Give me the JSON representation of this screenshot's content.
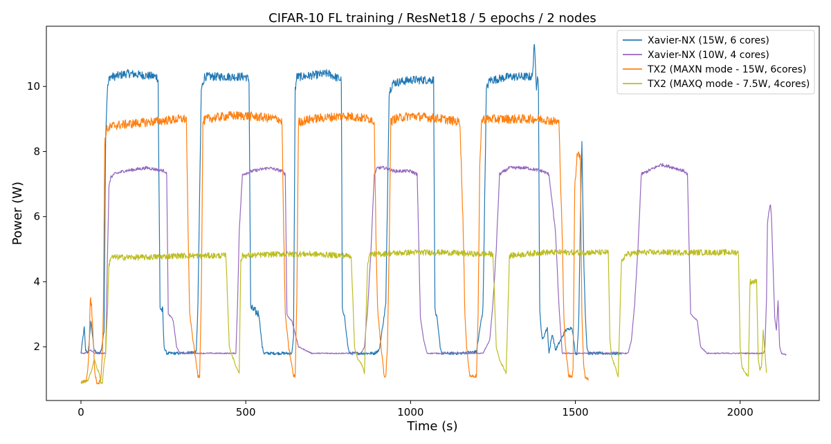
{
  "chart_data": {
    "type": "line",
    "title": "CIFAR-10 FL training / ResNet18 / 5 epochs / 2 nodes",
    "xlabel": "Time (s)",
    "ylabel": "Power (W)",
    "xlim": [
      -105,
      2240
    ],
    "ylim": [
      0.35,
      11.85
    ],
    "xticks": [
      0,
      500,
      1000,
      1500,
      2000
    ],
    "xtick_labels": [
      "0",
      "500",
      "1000",
      "1500",
      "2000"
    ],
    "yticks": [
      2,
      4,
      6,
      8,
      10
    ],
    "ytick_labels": [
      "2",
      "4",
      "6",
      "8",
      "10"
    ],
    "grid": false,
    "legend_position": "top-right",
    "series": [
      {
        "name": "Xavier-NX (15W, 6 cores)",
        "color": "#1f77b4",
        "noise": 0.13,
        "x": [
          0,
          10,
          14,
          22,
          30,
          40,
          48,
          55,
          62,
          70,
          75,
          80,
          85,
          88,
          100,
          140,
          230,
          234,
          240,
          248,
          252,
          260,
          300,
          350,
          355,
          365,
          375,
          380,
          500,
          510,
          515,
          540,
          550,
          555,
          640,
          645,
          650,
          655,
          670,
          750,
          790,
          793,
          800,
          810,
          815,
          860,
          890,
          905,
          925,
          935,
          945,
          1000,
          1070,
          1074,
          1080,
          1090,
          1095,
          1110,
          1150,
          1200,
          1220,
          1230,
          1240,
          1250,
          1300,
          1370,
          1375,
          1378,
          1382,
          1385,
          1388,
          1392,
          1395,
          1400,
          1415,
          1420,
          1430,
          1440,
          1470,
          1490,
          1500,
          1505,
          1510,
          1515,
          1520,
          1525,
          1530,
          1535,
          1540,
          1545,
          1550,
          1555,
          1560,
          1570,
          1580,
          1590,
          1600,
          1610,
          1620,
          1640
        ],
        "y": [
          1.8,
          2.6,
          1.9,
          1.8,
          2.8,
          1.9,
          1.8,
          1.8,
          1.9,
          2.5,
          8.5,
          9.9,
          10.2,
          10.3,
          10.3,
          10.4,
          10.3,
          10.2,
          3.2,
          3.1,
          2.0,
          1.8,
          1.8,
          1.85,
          3.3,
          9.9,
          10.3,
          10.3,
          10.3,
          10.2,
          3.2,
          3.0,
          2.0,
          1.8,
          1.8,
          2.3,
          9.9,
          10.3,
          10.3,
          10.4,
          10.2,
          3.1,
          2.9,
          2.0,
          1.8,
          1.8,
          1.8,
          1.9,
          3.3,
          9.8,
          10.1,
          10.2,
          10.2,
          3.1,
          2.9,
          2.0,
          1.8,
          1.8,
          1.8,
          1.85,
          3.2,
          9.9,
          10.2,
          10.2,
          10.3,
          10.3,
          11.35,
          10.8,
          10.0,
          10.4,
          10.0,
          3.1,
          2.7,
          2.2,
          2.6,
          1.8,
          2.4,
          1.9,
          2.5,
          2.6,
          1.8,
          1.8,
          2.7,
          5.8,
          8.3,
          5.0,
          3.1,
          2.0,
          1.8,
          1.8,
          1.8,
          1.8,
          1.8,
          1.8,
          1.8,
          1.8,
          1.8,
          1.8,
          1.8,
          1.8
        ]
      },
      {
        "name": "Xavier-NX (10W, 4 cores)",
        "color": "#9467bd",
        "noise": 0.05,
        "x": [
          0,
          10,
          20,
          30,
          40,
          60,
          75,
          78,
          80,
          85,
          90,
          100,
          130,
          200,
          255,
          260,
          265,
          275,
          280,
          290,
          300,
          350,
          400,
          460,
          470,
          475,
          480,
          490,
          520,
          570,
          610,
          620,
          625,
          630,
          640,
          660,
          700,
          710,
          715,
          740,
          790,
          850,
          860,
          870,
          880,
          890,
          900,
          920,
          950,
          1000,
          1020,
          1030,
          1040,
          1050,
          1060,
          1100,
          1150,
          1200,
          1220,
          1240,
          1250,
          1260,
          1270,
          1300,
          1350,
          1400,
          1420,
          1440,
          1450,
          1460,
          1500,
          1600,
          1650,
          1660,
          1670,
          1680,
          1690,
          1700,
          1760,
          1800,
          1830,
          1840,
          1850,
          1860,
          1870,
          1880,
          1900,
          1950,
          2000,
          2050,
          2070,
          2075,
          2080,
          2083,
          2088,
          2092,
          2095,
          2100,
          2105,
          2110,
          2115,
          2120,
          2125,
          2140
        ],
        "y": [
          1.8,
          1.8,
          1.85,
          1.9,
          1.8,
          1.8,
          1.8,
          3.3,
          4.6,
          6.9,
          7.2,
          7.3,
          7.4,
          7.5,
          7.4,
          7.3,
          3.0,
          2.9,
          2.8,
          2.0,
          1.8,
          1.8,
          1.8,
          1.8,
          1.8,
          3.3,
          5.5,
          7.3,
          7.4,
          7.5,
          7.4,
          7.3,
          3.0,
          2.9,
          2.8,
          2.0,
          1.8,
          1.8,
          1.8,
          1.8,
          1.8,
          1.8,
          2.0,
          3.2,
          5.0,
          7.3,
          7.5,
          7.5,
          7.4,
          7.4,
          7.3,
          2.9,
          2.2,
          1.8,
          1.8,
          1.8,
          1.8,
          1.8,
          1.8,
          2.2,
          3.3,
          5.0,
          7.3,
          7.5,
          7.5,
          7.4,
          7.3,
          5.5,
          3.3,
          1.8,
          1.8,
          1.8,
          1.8,
          1.8,
          2.2,
          3.3,
          5.0,
          7.3,
          7.6,
          7.5,
          7.4,
          7.3,
          3.0,
          2.9,
          2.8,
          2.0,
          1.8,
          1.8,
          1.8,
          1.8,
          1.8,
          1.9,
          3.5,
          5.8,
          6.2,
          6.35,
          6.0,
          4.5,
          2.9,
          2.5,
          3.4,
          2.0,
          1.8,
          1.75
        ]
      },
      {
        "name": "TX2 (MAXN mode - 15W, 6cores)",
        "color": "#ff7f0e",
        "noise": 0.14,
        "x": [
          0,
          15,
          20,
          25,
          28,
          32,
          36,
          42,
          48,
          55,
          60,
          65,
          68,
          72,
          76,
          80,
          100,
          200,
          300,
          320,
          325,
          330,
          340,
          355,
          360,
          365,
          370,
          380,
          450,
          500,
          600,
          610,
          615,
          620,
          630,
          645,
          650,
          655,
          660,
          700,
          800,
          880,
          890,
          895,
          900,
          910,
          920,
          925,
          930,
          935,
          940,
          950,
          1000,
          1100,
          1150,
          1160,
          1165,
          1170,
          1180,
          1200,
          1205,
          1210,
          1215,
          1220,
          1240,
          1300,
          1400,
          1450,
          1460,
          1465,
          1470,
          1480,
          1490,
          1493,
          1498,
          1505,
          1510,
          1515,
          1520,
          1525,
          1530,
          1540
        ],
        "y": [
          0.9,
          0.95,
          1.2,
          2.0,
          3.5,
          3.3,
          2.5,
          1.2,
          0.9,
          0.9,
          1.0,
          1.8,
          3.2,
          8.2,
          8.6,
          8.7,
          8.8,
          8.9,
          9.0,
          9.0,
          5.5,
          3.0,
          2.2,
          1.1,
          1.1,
          3.5,
          8.9,
          9.0,
          9.1,
          9.1,
          9.0,
          8.9,
          5.5,
          3.0,
          2.0,
          1.1,
          1.1,
          3.5,
          8.9,
          9.0,
          9.1,
          9.0,
          8.9,
          5.5,
          3.2,
          2.0,
          1.1,
          1.1,
          2.0,
          5.0,
          8.9,
          9.0,
          9.1,
          9.0,
          8.9,
          5.5,
          3.0,
          2.0,
          1.1,
          1.1,
          3.0,
          7.5,
          8.9,
          9.0,
          9.0,
          9.0,
          9.0,
          8.9,
          5.5,
          3.0,
          2.0,
          1.1,
          1.1,
          1.3,
          6.8,
          7.9,
          8.0,
          7.8,
          3.0,
          1.5,
          1.05,
          1.0
        ]
      },
      {
        "name": "TX2 (MAXQ mode - 7.5W, 4cores)",
        "color": "#bcbd22",
        "noise": 0.09,
        "x": [
          0,
          20,
          30,
          40,
          45,
          50,
          55,
          60,
          65,
          70,
          75,
          80,
          85,
          90,
          100,
          200,
          300,
          400,
          440,
          450,
          460,
          470,
          480,
          485,
          490,
          500,
          600,
          700,
          800,
          820,
          830,
          840,
          850,
          860,
          870,
          875,
          880,
          900,
          1000,
          1100,
          1200,
          1250,
          1260,
          1270,
          1280,
          1290,
          1300,
          1400,
          1500,
          1600,
          1605,
          1610,
          1620,
          1630,
          1640,
          1650,
          1660,
          1700,
          1800,
          1900,
          1995,
          2000,
          2005,
          2015,
          2025,
          2030,
          2040,
          2050,
          2055,
          2060,
          2065,
          2070,
          2080
        ],
        "y": [
          0.9,
          0.95,
          1.2,
          1.6,
          1.5,
          1.3,
          1.2,
          0.9,
          0.9,
          1.5,
          1.8,
          3.0,
          4.5,
          4.75,
          4.75,
          4.75,
          4.8,
          4.8,
          4.8,
          2.0,
          1.7,
          1.4,
          1.2,
          4.6,
          4.8,
          4.8,
          4.85,
          4.85,
          4.8,
          4.8,
          2.0,
          1.6,
          1.5,
          1.2,
          4.6,
          4.8,
          4.85,
          4.85,
          4.9,
          4.9,
          4.85,
          4.85,
          2.0,
          1.6,
          1.4,
          1.2,
          4.8,
          4.9,
          4.9,
          4.9,
          2.2,
          1.7,
          1.4,
          1.1,
          4.6,
          4.8,
          4.85,
          4.9,
          4.9,
          4.9,
          4.9,
          2.0,
          1.4,
          1.2,
          1.1,
          4.0,
          4.0,
          4.0,
          1.6,
          1.3,
          1.4,
          2.5,
          1.2
        ]
      }
    ]
  }
}
